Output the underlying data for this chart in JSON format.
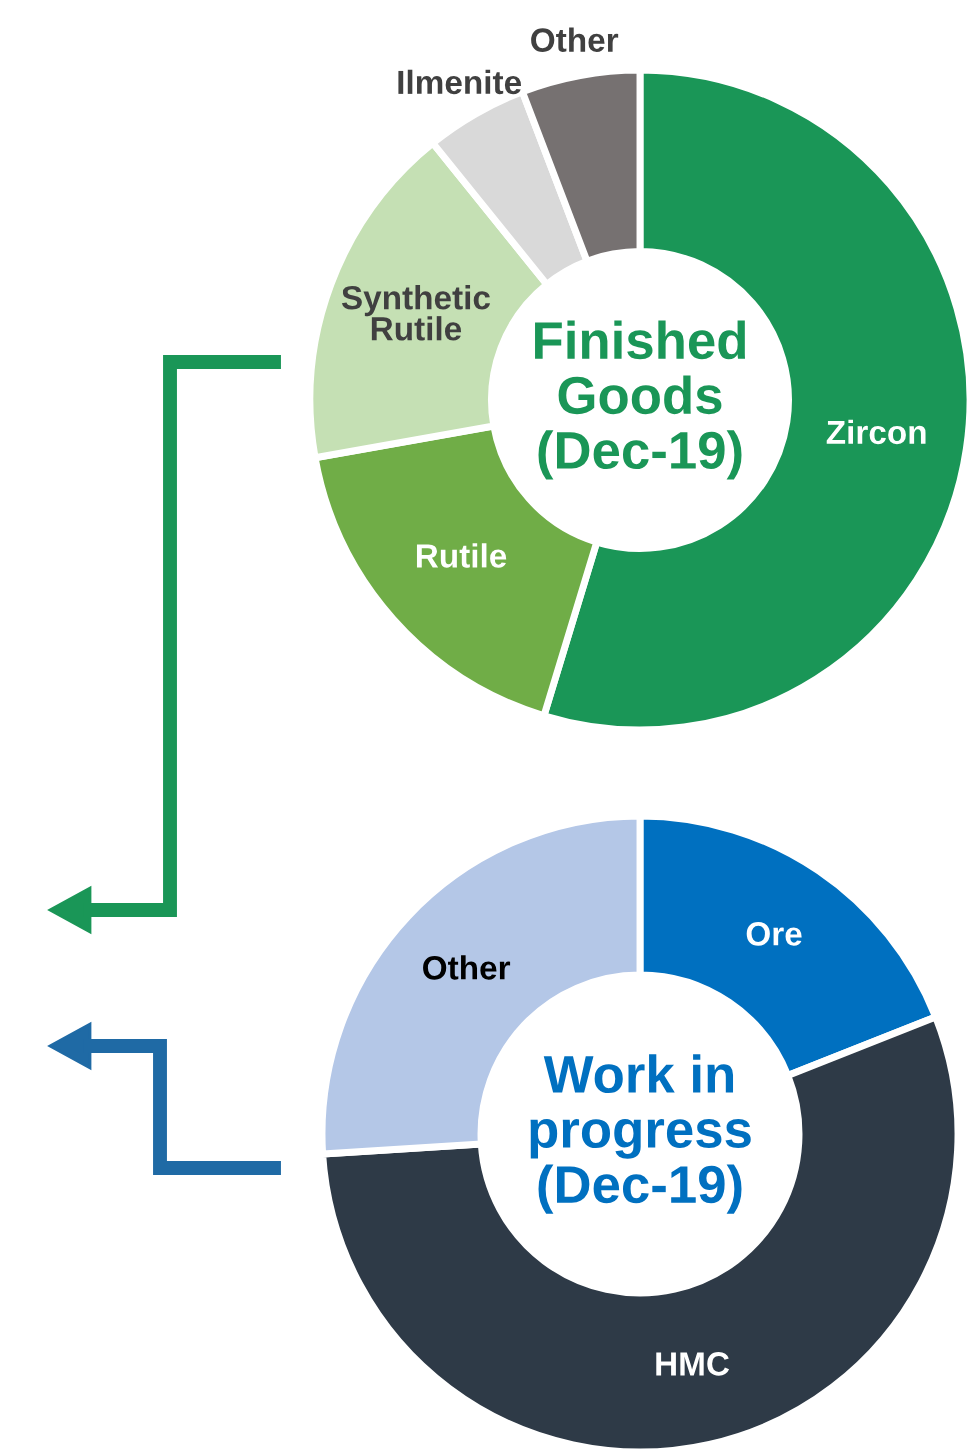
{
  "chart_data": [
    {
      "type": "donut",
      "title": "Finished\nGoods\n(Dec-19)",
      "categories": [
        "Zircon",
        "Rutile",
        "Synthetic\nRutile",
        "Ilmenite",
        "Other"
      ],
      "values": [
        54.7,
        17.5,
        17,
        5,
        5.8
      ],
      "colors": [
        "#1a9657",
        "#70ad47",
        "#c5e0b4",
        "#d9d9d9",
        "#767171"
      ],
      "legend": false
    },
    {
      "type": "donut",
      "title": "Work in\nprogress\n(Dec-19)",
      "categories": [
        "Ore",
        "HMC",
        "Other"
      ],
      "values": [
        19,
        55,
        26
      ],
      "colors": [
        "#0070c0",
        "#2e3a47",
        "#b4c7e7"
      ],
      "legend": false
    }
  ]
}
